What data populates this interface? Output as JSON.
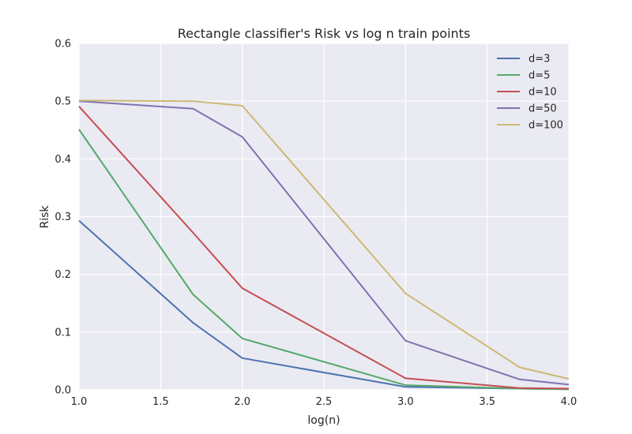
{
  "chart_data": {
    "type": "line",
    "title": "Rectangle classifier's Risk vs log n train points",
    "xlabel": "log(n)",
    "ylabel": "Risk",
    "xlim": [
      1.0,
      4.0
    ],
    "ylim": [
      0.0,
      0.6
    ],
    "xticks": [
      "1.0",
      "1.5",
      "2.0",
      "2.5",
      "3.0",
      "3.5",
      "4.0"
    ],
    "yticks": [
      "0.0",
      "0.1",
      "0.2",
      "0.3",
      "0.4",
      "0.5",
      "0.6"
    ],
    "grid": true,
    "legend_position": "top-right",
    "background": "#EAEAF2",
    "x": [
      1.0,
      1.699,
      2.0,
      3.0,
      3.699,
      4.0
    ],
    "series": [
      {
        "name": "d=3",
        "color": "#4C72B0",
        "values": [
          0.293,
          0.116,
          0.055,
          0.005,
          0.002,
          0.001
        ]
      },
      {
        "name": "d=5",
        "color": "#55A868",
        "values": [
          0.451,
          0.165,
          0.089,
          0.008,
          0.002,
          0.001
        ]
      },
      {
        "name": "d=10",
        "color": "#C44E52",
        "values": [
          0.491,
          0.272,
          0.176,
          0.02,
          0.003,
          0.002
        ]
      },
      {
        "name": "d=50",
        "color": "#8172B2",
        "values": [
          0.5,
          0.487,
          0.438,
          0.085,
          0.018,
          0.009
        ]
      },
      {
        "name": "d=100",
        "color": "#CCB974",
        "values": [
          0.501,
          0.5,
          0.492,
          0.167,
          0.039,
          0.019
        ]
      }
    ]
  }
}
